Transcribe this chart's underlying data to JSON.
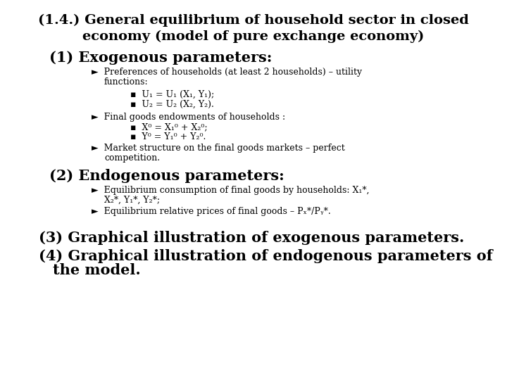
{
  "bg_color": "#ffffff",
  "title_line1": "(1.4.) General equilibrium of household sector in closed",
  "title_line2": "economy (model of pure exchange economy)",
  "title_fontsize": 14,
  "section1_header": "(1) Exogenous parameters:",
  "section2_header": "(2) Endogenous parameters:",
  "section3": "(3) Graphical illustration of exogenous parameters.",
  "section4_line1": "(4) Graphical illustration of endogenous parameters of",
  "section4_line2": "      the model.",
  "sections_fontsize": 15,
  "small_fontsize": 9,
  "arrow": "►",
  "bullet": "▪",
  "pref_line1": "Preferences of households (at least 2 households) – utility",
  "pref_line2": "functions:",
  "pref_sub1": "U₁ = U₁ (X₁, Y₁);",
  "pref_sub2": "U₂ = U₂ (X₂, Y₂).",
  "endow_line1": "Final goods endowments of households :",
  "endow_sub1": "X⁰ = X₁⁰ + X₂⁰;",
  "endow_sub2": "Y⁰ = Y₁⁰ + Y₂⁰.",
  "market_line1": "Market structure on the final goods markets – perfect",
  "market_line2": "competition.",
  "endo_b1_line1": "Equilibrium consumption of final goods by households: X₁*,",
  "endo_b1_line2": "X₂*, Y₁*, Y₂*;",
  "endo_b2": "Equilibrium relative prices of final goods – Pₓ*/Pᵧ*."
}
